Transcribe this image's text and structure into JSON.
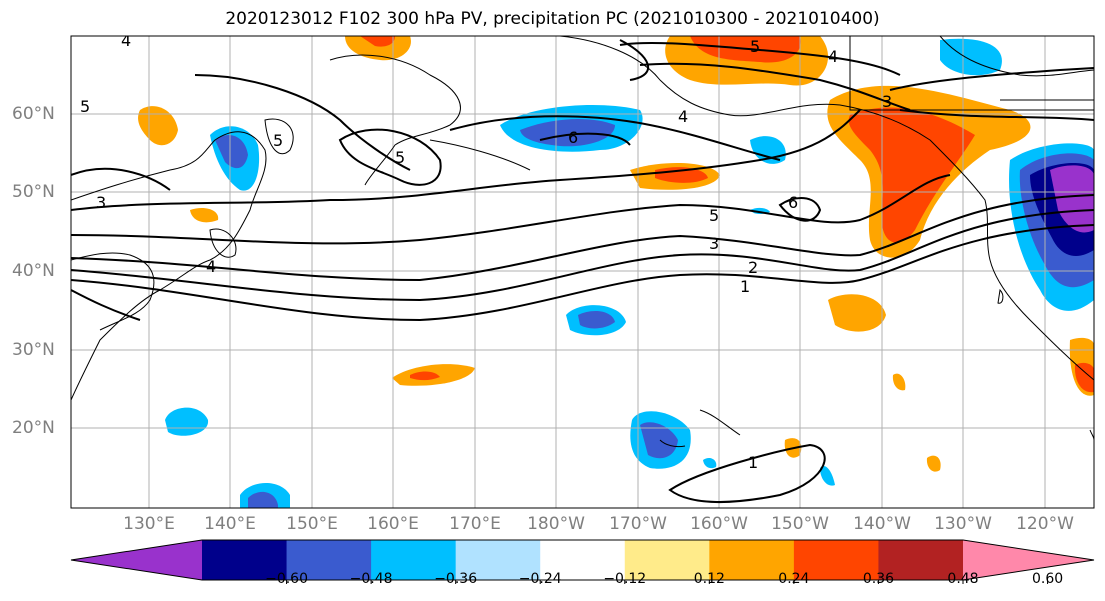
{
  "title": "2020123012 F102 300 hPa PV, precipitation PC (2021010300 - 2021010400)",
  "lon_labels": [
    "130°E",
    "140°E",
    "150°E",
    "160°E",
    "170°E",
    "180°W",
    "170°W",
    "160°W",
    "150°W",
    "140°W",
    "130°W",
    "120°W"
  ],
  "lat_labels": [
    "60°N",
    "50°N",
    "40°N",
    "30°N",
    "20°N"
  ],
  "colorbar": {
    "colors": [
      "#9932cc",
      "#00008b",
      "#3a5bcf",
      "#00bfff",
      "#b0e2ff",
      "#ffffff",
      "#ffeb8a",
      "#ffa500",
      "#ff4500",
      "#b22222",
      "#ff88aa"
    ],
    "tick_labels": [
      "-0.60",
      "-0.48",
      "-0.36",
      "-0.24",
      "-0.12",
      "0.12",
      "0.24",
      "0.36",
      "0.48",
      "0.60"
    ]
  },
  "contour_labels": [
    "4",
    "5",
    "4",
    "3",
    "4",
    "5",
    "6",
    "6",
    "5",
    "3",
    "2",
    "1",
    "4",
    "3",
    "5",
    "5",
    "1"
  ]
}
